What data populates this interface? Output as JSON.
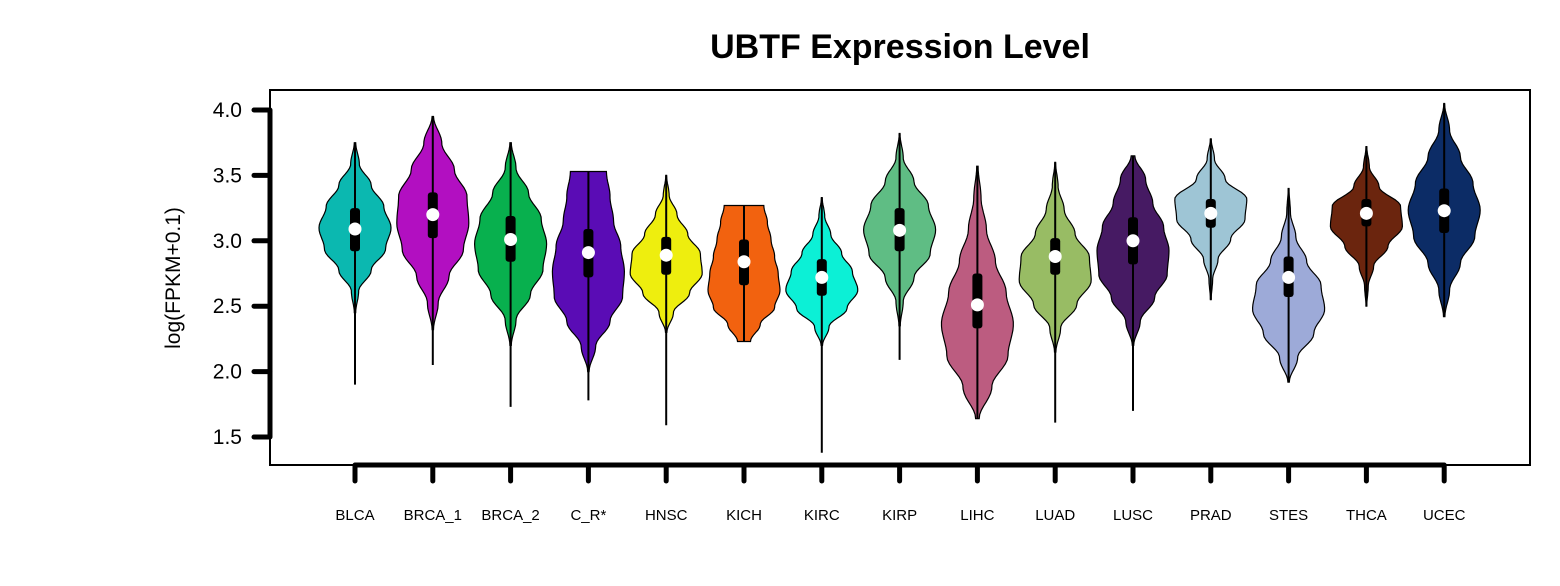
{
  "chart_data": {
    "type": "violin",
    "title": "UBTF Expression Level",
    "ylabel": "log(FPKM+0.1)",
    "ylim": [
      1.3,
      4.1
    ],
    "yticks": [
      1.5,
      2.0,
      2.5,
      3.0,
      3.5,
      4.0
    ],
    "ytick_labels": [
      "1.5",
      "2.0",
      "2.5",
      "3.0",
      "3.5",
      "4.0"
    ],
    "categories": [
      "BLCA",
      "BRCA_1",
      "BRCA_2",
      "C_R*",
      "HNSC",
      "KICH",
      "KIRC",
      "KIRP",
      "LIHC",
      "LUAD",
      "LUSC",
      "PRAD",
      "STES",
      "THCA",
      "UCEC"
    ],
    "series": [
      {
        "category": "BLCA",
        "color": "#0BB8B0",
        "violin_min": 2.45,
        "violin_max": 3.75,
        "whisker_low": 1.9,
        "whisker_high": 3.75,
        "q1": 2.92,
        "median": 3.09,
        "q3": 3.25,
        "profile": [
          0.02,
          0.1,
          0.45,
          0.85,
          1.0,
          0.8,
          0.45,
          0.12,
          0.02
        ]
      },
      {
        "category": "BRCA_1",
        "color": "#B20FC1",
        "violin_min": 2.32,
        "violin_max": 3.95,
        "whisker_low": 2.05,
        "whisker_high": 3.95,
        "q1": 3.02,
        "median": 3.2,
        "q3": 3.37,
        "profile": [
          0.02,
          0.15,
          0.45,
          0.85,
          1.0,
          0.95,
          0.6,
          0.25,
          0.02
        ]
      },
      {
        "category": "BRCA_2",
        "color": "#08B04E",
        "violin_min": 2.2,
        "violin_max": 3.75,
        "whisker_low": 1.73,
        "whisker_high": 3.75,
        "q1": 2.84,
        "median": 3.01,
        "q3": 3.19,
        "profile": [
          0.02,
          0.15,
          0.55,
          0.9,
          1.0,
          0.85,
          0.5,
          0.15,
          0.02
        ]
      },
      {
        "category": "C_R*",
        "color": "#5A0CB5",
        "violin_min": 2.0,
        "violin_max": 3.53,
        "whisker_low": 1.78,
        "whisker_high": 3.53,
        "q1": 2.72,
        "median": 2.91,
        "q3": 3.09,
        "profile": [
          0.02,
          0.2,
          0.6,
          0.95,
          1.0,
          0.9,
          0.7,
          0.6,
          0.5
        ]
      },
      {
        "category": "HNSC",
        "color": "#EEEE0E",
        "violin_min": 2.3,
        "violin_max": 3.5,
        "whisker_low": 1.59,
        "whisker_high": 3.5,
        "q1": 2.74,
        "median": 2.89,
        "q3": 3.03,
        "profile": [
          0.02,
          0.2,
          0.65,
          1.0,
          0.95,
          0.6,
          0.3,
          0.08,
          0.01
        ]
      },
      {
        "category": "KICH",
        "color": "#F2620F",
        "violin_min": 2.23,
        "violin_max": 3.27,
        "whisker_low": 2.23,
        "whisker_high": 3.27,
        "q1": 2.66,
        "median": 2.84,
        "q3": 3.01,
        "profile": [
          0.18,
          0.45,
          0.85,
          1.0,
          0.95,
          0.85,
          0.75,
          0.65,
          0.55
        ]
      },
      {
        "category": "KIRC",
        "color": "#0CF0D6",
        "violin_min": 2.2,
        "violin_max": 3.33,
        "whisker_low": 1.38,
        "whisker_high": 3.33,
        "q1": 2.58,
        "median": 2.72,
        "q3": 2.86,
        "profile": [
          0.02,
          0.2,
          0.7,
          1.0,
          0.85,
          0.55,
          0.25,
          0.08,
          0.01
        ]
      },
      {
        "category": "KIRP",
        "color": "#5FBD84",
        "violin_min": 2.35,
        "violin_max": 3.82,
        "whisker_low": 2.09,
        "whisker_high": 3.82,
        "q1": 2.92,
        "median": 3.08,
        "q3": 3.25,
        "profile": [
          0.02,
          0.1,
          0.4,
          0.85,
          1.0,
          0.8,
          0.4,
          0.1,
          0.01
        ]
      },
      {
        "category": "LIHC",
        "color": "#BC5C80",
        "violin_min": 1.64,
        "violin_max": 3.57,
        "whisker_low": 1.64,
        "whisker_high": 3.57,
        "q1": 2.33,
        "median": 2.51,
        "q3": 2.75,
        "profile": [
          0.05,
          0.4,
          0.85,
          1.0,
          0.8,
          0.5,
          0.25,
          0.1,
          0.02
        ]
      },
      {
        "category": "LUAD",
        "color": "#98BC64",
        "violin_min": 2.15,
        "violin_max": 3.6,
        "whisker_low": 1.61,
        "whisker_high": 3.6,
        "q1": 2.74,
        "median": 2.88,
        "q3": 3.02,
        "profile": [
          0.02,
          0.15,
          0.6,
          1.0,
          0.95,
          0.55,
          0.25,
          0.08,
          0.01
        ]
      },
      {
        "category": "LUSC",
        "color": "#461A63",
        "violin_min": 2.2,
        "violin_max": 3.65,
        "whisker_low": 1.7,
        "whisker_high": 3.65,
        "q1": 2.82,
        "median": 3.0,
        "q3": 3.18,
        "profile": [
          0.02,
          0.2,
          0.6,
          0.95,
          1.0,
          0.85,
          0.55,
          0.35,
          0.05
        ]
      },
      {
        "category": "PRAD",
        "color": "#9EC5D5",
        "violin_min": 2.55,
        "violin_max": 3.78,
        "whisker_low": 2.55,
        "whisker_high": 3.78,
        "q1": 3.1,
        "median": 3.21,
        "q3": 3.32,
        "profile": [
          0.01,
          0.05,
          0.2,
          0.55,
          0.95,
          1.0,
          0.4,
          0.1,
          0.01
        ]
      },
      {
        "category": "STES",
        "color": "#9DAAD8",
        "violin_min": 1.92,
        "violin_max": 3.4,
        "whisker_low": 1.92,
        "whisker_high": 3.4,
        "q1": 2.57,
        "median": 2.72,
        "q3": 2.88,
        "profile": [
          0.02,
          0.25,
          0.7,
          1.0,
          0.9,
          0.5,
          0.2,
          0.05,
          0.01
        ]
      },
      {
        "category": "THCA",
        "color": "#6B250E",
        "violin_min": 2.5,
        "violin_max": 3.72,
        "whisker_low": 2.5,
        "whisker_high": 3.72,
        "q1": 3.11,
        "median": 3.21,
        "q3": 3.32,
        "profile": [
          0.01,
          0.05,
          0.2,
          0.6,
          1.0,
          0.95,
          0.35,
          0.08,
          0.01
        ]
      },
      {
        "category": "UCEC",
        "color": "#0C2C66",
        "violin_min": 2.42,
        "violin_max": 4.05,
        "whisker_low": 2.42,
        "whisker_high": 4.05,
        "q1": 3.06,
        "median": 3.23,
        "q3": 3.4,
        "profile": [
          0.02,
          0.15,
          0.45,
          0.85,
          1.0,
          0.8,
          0.45,
          0.15,
          0.01
        ]
      }
    ]
  }
}
